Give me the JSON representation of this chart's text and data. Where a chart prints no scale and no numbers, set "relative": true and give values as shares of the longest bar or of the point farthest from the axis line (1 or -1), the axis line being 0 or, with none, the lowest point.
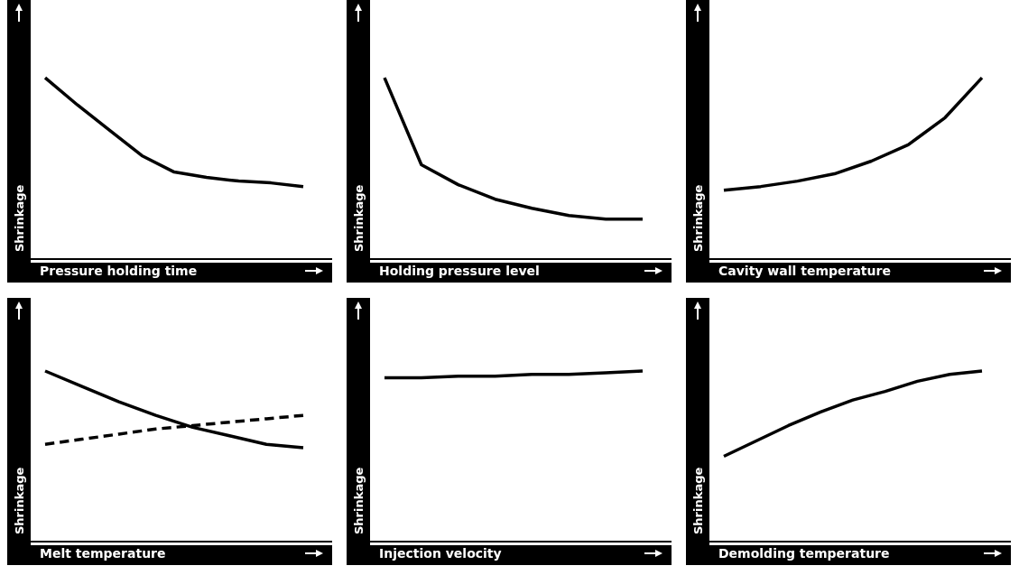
{
  "chart_data": [
    {
      "type": "line",
      "relative": true,
      "xlabel": "Pressure holding time",
      "ylabel": "Shrinkage",
      "categories": [
        null,
        null,
        null,
        null,
        null,
        null,
        null,
        null,
        null
      ],
      "series": [
        {
          "color": "#000000",
          "values": [
            1,
            0.85,
            0.71,
            0.57,
            0.48,
            0.45,
            0.43,
            0.42,
            0.4
          ]
        }
      ]
    },
    {
      "type": "line",
      "relative": true,
      "xlabel": "Holding pressure level",
      "ylabel": "Shrinkage",
      "categories": [
        null,
        null,
        null,
        null,
        null,
        null,
        null,
        null
      ],
      "series": [
        {
          "color": "#000000",
          "values": [
            1,
            0.52,
            0.41,
            0.33,
            0.28,
            0.24,
            0.22,
            0.22
          ]
        }
      ]
    },
    {
      "type": "line",
      "relative": true,
      "xlabel": "Cavity wall temperature",
      "ylabel": "Shrinkage",
      "categories": [
        null,
        null,
        null,
        null,
        null,
        null,
        null,
        null
      ],
      "series": [
        {
          "color": "#000000",
          "values": [
            0.38,
            0.4,
            0.43,
            0.47,
            0.54,
            0.63,
            0.78,
            1
          ]
        }
      ]
    },
    {
      "type": "line",
      "relative": true,
      "xlabel": "Melt temperature",
      "ylabel": "Shrinkage",
      "categories": [
        null,
        null,
        null,
        null,
        null,
        null,
        null,
        null
      ],
      "series": [
        {
          "color": "#000000",
          "values": [
            1,
            0.91,
            0.82,
            0.74,
            0.67,
            0.62,
            0.57,
            0.55
          ]
        },
        {
          "color": "#000000",
          "line_style": "dashed",
          "values": [
            0.57,
            0.6,
            0.63,
            0.66,
            0.68,
            0.7,
            0.72,
            0.74
          ]
        }
      ]
    },
    {
      "type": "line",
      "relative": true,
      "xlabel": "Injection velocity",
      "ylabel": "Shrinkage",
      "categories": [
        null,
        null,
        null,
        null,
        null,
        null,
        null,
        null
      ],
      "series": [
        {
          "color": "#000000",
          "values": [
            0.96,
            0.96,
            0.97,
            0.97,
            0.98,
            0.98,
            0.99,
            1
          ]
        }
      ]
    },
    {
      "type": "line",
      "relative": true,
      "xlabel": "Demolding temperature",
      "ylabel": "Shrinkage",
      "categories": [
        null,
        null,
        null,
        null,
        null,
        null,
        null,
        null,
        null
      ],
      "series": [
        {
          "color": "#000000",
          "values": [
            0.5,
            0.59,
            0.68,
            0.76,
            0.83,
            0.88,
            0.94,
            0.98,
            1
          ]
        }
      ]
    }
  ]
}
